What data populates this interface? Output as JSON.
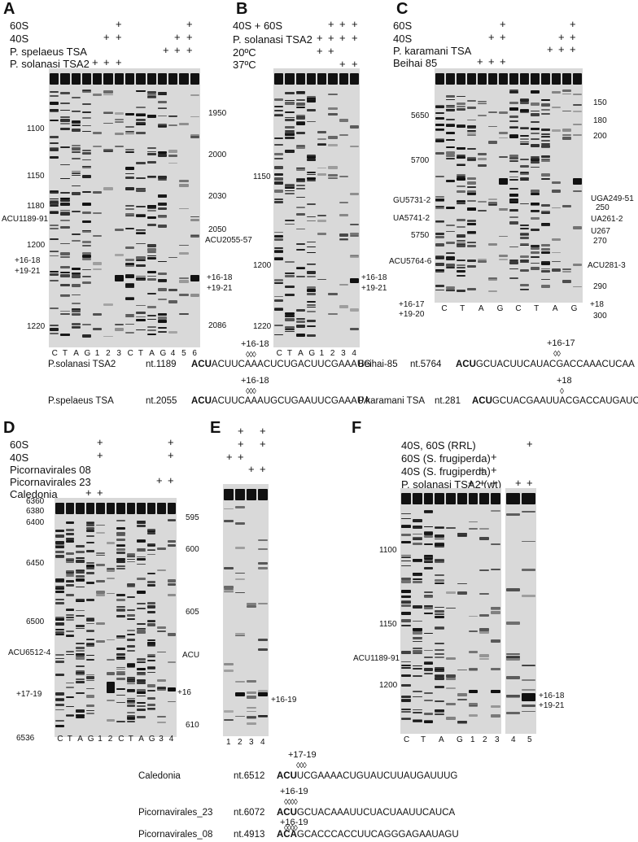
{
  "panels": {
    "A": {
      "letter": "A",
      "conditions": [
        "60S",
        "40S",
        "P. spelaeus TSA",
        "P. solanasi TSA2"
      ],
      "left_ticks": [
        "1100",
        "1150",
        "1180",
        "ACU1189-91",
        "1200",
        "+16-18",
        "+19-21",
        "1220"
      ],
      "right_ticks": [
        "1950",
        "2000",
        "2030",
        "2050",
        "ACU2055-57",
        "+16-18",
        "+19-21",
        "2086"
      ],
      "lanes": [
        "C",
        "T",
        "A",
        "G",
        "1",
        "2",
        "3",
        "C",
        "T",
        "A",
        "G",
        "4",
        "5",
        "6"
      ]
    },
    "B": {
      "letter": "B",
      "conditions": [
        "40S + 60S",
        "P. solanasi TSA2",
        "20ºC",
        "37ºC"
      ],
      "left_ticks": [
        "1150",
        "1200",
        "1220"
      ],
      "right_ticks": [
        "+16-18",
        "+19-21"
      ],
      "lanes": [
        "C",
        "T",
        "A",
        "G",
        "1",
        "2",
        "3",
        "4"
      ]
    },
    "C": {
      "letter": "C",
      "conditions": [
        "60S",
        "40S",
        "P. karamani TSA",
        "Beihai 85"
      ],
      "left_ticks": [
        "5650",
        "5700",
        "GU5731-2",
        "UA5741-2",
        "5750",
        "ACU5764-6",
        "+16-17",
        "+19-20"
      ],
      "right_ticks": [
        "150",
        "180",
        "200",
        "UGA249-51",
        "250",
        "UA261-2",
        "U267",
        "270",
        "ACU281-3",
        "290",
        "+18",
        "300"
      ],
      "lanes": [
        "C",
        "T",
        "A",
        "G",
        "C",
        "T",
        "A",
        "G"
      ]
    },
    "D": {
      "letter": "D",
      "conditions": [
        "60S",
        "40S",
        "Picornavirales 08",
        "Picornavirales 23",
        "Caledonia"
      ],
      "left_ticks": [
        "6360",
        "6380",
        "6400",
        "6450",
        "6500",
        "ACU6512-4",
        "+17-19",
        "6536"
      ],
      "right_ticks": [
        "595",
        "600",
        "605",
        "ACU",
        "+16",
        "610"
      ],
      "lanes": [
        "C",
        "T",
        "A",
        "G",
        "1",
        "2",
        "C",
        "T",
        "A",
        "G",
        "3",
        "4"
      ]
    },
    "E": {
      "letter": "E",
      "right_ticks": [
        "+16-19"
      ],
      "lanes": [
        "1",
        "2",
        "3",
        "4"
      ]
    },
    "F": {
      "letter": "F",
      "conditions": [
        "40S, 60S (RRL)",
        "60S (S. frugiperda)",
        "40S (S. frugiperda)",
        "P. solanasi TSA2 (wt)"
      ],
      "left_ticks": [
        "1100",
        "1150",
        "ACU1189-91",
        "1200"
      ],
      "right_ticks": [
        "+16-18",
        "+19-21"
      ],
      "lanes": [
        "C",
        "T",
        "A",
        "G",
        "1",
        "2",
        "3",
        "4",
        "5"
      ]
    }
  },
  "sequences": [
    {
      "name": "P.solanasi TSA2",
      "nt": "nt.1189",
      "start": "ACU",
      "rest": "ACUUCAAACUCUGACUUCGAAAUG",
      "mark": "+16-18"
    },
    {
      "name": "P.spelaeus TSA",
      "nt": "nt.2055",
      "start": "ACU",
      "rest": "ACUUCAAAUGCUGAAUUCGAAAUA",
      "mark": "+16-18"
    },
    {
      "name": "Beihai-85",
      "nt": "nt.5764",
      "start": "ACU",
      "rest": "GCUACUUCAUACGACCAAACUCAA",
      "mark": "+16-17"
    },
    {
      "name": "P.karamani TSA",
      "nt": "nt.281",
      "start": "ACU",
      "rest": "GCUACGAAUUACGACCAUGAUCAA",
      "mark": "+18"
    },
    {
      "name": "Caledonia",
      "nt": "nt.6512",
      "start": "ACU",
      "rest": "UCGAAAACUGUAUCUUAUGAUUUG",
      "mark": "+17-19"
    },
    {
      "name": "Picornavirales_23",
      "nt": "nt.6072",
      "start": "ACU",
      "rest": "GCUACAAAUUCUACUAAUUCAUCA",
      "mark": "+16-19"
    },
    {
      "name": "Picornavirales_08",
      "nt": "nt.4913",
      "start": "ACA",
      "rest": "GCACCCACCUUCAGGGAGAAUAGU",
      "mark": "+16-19"
    }
  ]
}
